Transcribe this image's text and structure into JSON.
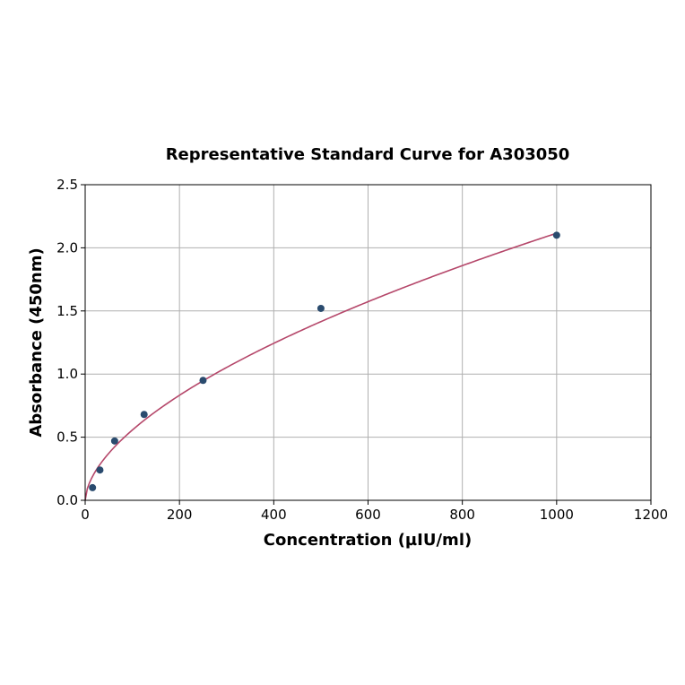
{
  "chart_data": {
    "type": "scatter",
    "title": "Representative Standard Curve for A303050",
    "xlabel": "Concentration (µIU/ml)",
    "ylabel": "Absorbance (450nm)",
    "xlim": [
      0,
      1200
    ],
    "ylim": [
      0,
      2.5
    ],
    "xticks": [
      0,
      200,
      400,
      600,
      800,
      1000,
      1200
    ],
    "yticks": [
      0.0,
      0.5,
      1.0,
      1.5,
      2.0,
      2.5
    ],
    "xtick_labels": [
      "0",
      "200",
      "400",
      "600",
      "800",
      "1000",
      "1200"
    ],
    "ytick_labels": [
      "0.0",
      "0.5",
      "1.0",
      "1.5",
      "2.0",
      "2.5"
    ],
    "grid": true,
    "points": {
      "x": [
        15.6,
        31.25,
        62.5,
        125,
        250,
        500,
        1000
      ],
      "y": [
        0.1,
        0.24,
        0.47,
        0.68,
        0.95,
        1.52,
        2.1
      ]
    },
    "fit_curve": {
      "type": "power",
      "a": 0.0385,
      "b": 0.58
    },
    "colors": {
      "points": "#2a4b6e",
      "curve": "#b5476a"
    }
  }
}
